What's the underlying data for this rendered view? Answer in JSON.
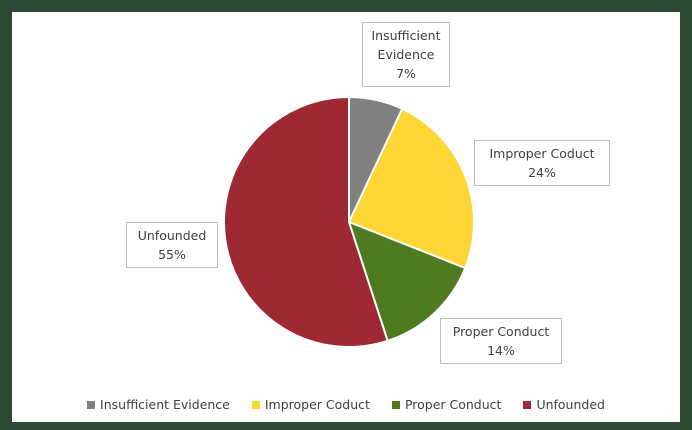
{
  "chart_data": {
    "type": "pie",
    "categories": [
      "Insufficient Evidence",
      "Improper Coduct",
      "Proper Conduct",
      "Unfounded"
    ],
    "values": [
      7,
      24,
      14,
      55
    ],
    "value_labels": [
      "7%",
      "24%",
      "14%",
      "55%"
    ],
    "colors": [
      "#808080",
      "#ffd633",
      "#4f7a1f",
      "#9e2935"
    ],
    "legend": "bottom"
  }
}
